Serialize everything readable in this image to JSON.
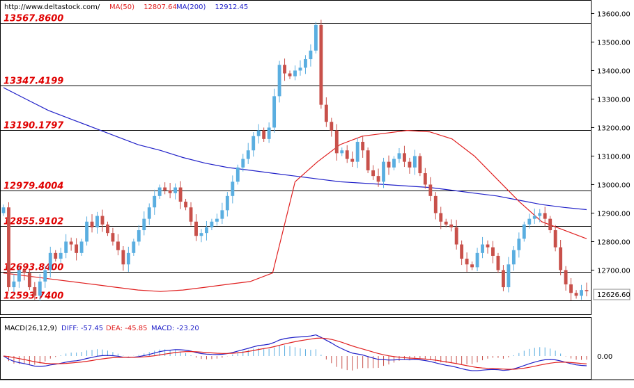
{
  "header": {
    "url": "http://www.deltastock.com/",
    "ma50_label": "MA(50)",
    "ma50_value": "12807.64",
    "ma200_label": "MA(200)",
    "ma200_value": "12912.45"
  },
  "colors": {
    "up": "#5aaee0",
    "down": "#c8504a",
    "ma50": "#e02020",
    "ma200": "#2020c8",
    "level_text": "#e00000",
    "macd_diff": "#2020c8",
    "macd_dea": "#e02020"
  },
  "chart_data": {
    "type": "candlestick",
    "ylim": [
      12545,
      13645
    ],
    "y_ticks": [
      "13600.00",
      "13500.00",
      "13400.00",
      "13300.00",
      "13200.00",
      "13100.00",
      "13000.00",
      "12900.00",
      "12800.00",
      "12700.00"
    ],
    "current_price": "12626.60",
    "levels": [
      {
        "value": 13567.86,
        "label": "13567.8600"
      },
      {
        "value": 13347.4199,
        "label": "13347.4199"
      },
      {
        "value": 13190.1797,
        "label": "13190.1797"
      },
      {
        "value": 12979.4004,
        "label": "12979.4004"
      },
      {
        "value": 12855.9102,
        "label": "12855.9102"
      },
      {
        "value": 12693.84,
        "label": "12693.8400"
      },
      {
        "value": 12593.74,
        "label": "12593.7400"
      }
    ],
    "closes": [
      12920,
      12640,
      12660,
      12700,
      12690,
      12640,
      12610,
      12660,
      12700,
      12760,
      12740,
      12760,
      12800,
      12790,
      12760,
      12800,
      12870,
      12850,
      12890,
      12860,
      12830,
      12800,
      12770,
      12720,
      12760,
      12800,
      12840,
      12880,
      12920,
      12960,
      12990,
      12980,
      12970,
      12990,
      12940,
      12920,
      12870,
      12820,
      12830,
      12850,
      12870,
      12880,
      12910,
      12960,
      13010,
      13060,
      13090,
      13120,
      13170,
      13190,
      13160,
      13200,
      13310,
      13420,
      13390,
      13380,
      13400,
      13410,
      13440,
      13470,
      13560,
      13280,
      13220,
      13190,
      13110,
      13120,
      13090,
      13080,
      13150,
      13120,
      13050,
      13030,
      13010,
      13080,
      13060,
      13090,
      13110,
      13080,
      13060,
      13100,
      13040,
      13000,
      12960,
      12900,
      12870,
      12860,
      12850,
      12790,
      12740,
      12720,
      12710,
      12760,
      12790,
      12780,
      12750,
      12700,
      12640,
      12720,
      12770,
      12810,
      12860,
      12880,
      12890,
      12900,
      12880,
      12840,
      12780,
      12700,
      12650,
      12620,
      12610,
      12630,
      12626
    ],
    "ma50": [
      12690,
      12680,
      12670,
      12660,
      12650,
      12640,
      12630,
      12625,
      12630,
      12640,
      12650,
      12660,
      12690,
      13010,
      13080,
      13140,
      13170,
      13180,
      13190,
      13185,
      13160,
      13100,
      13020,
      12940,
      12870,
      12840,
      12810
    ],
    "ma200": [
      13340,
      13300,
      13260,
      13230,
      13200,
      13170,
      13140,
      13120,
      13095,
      13075,
      13060,
      13050,
      13040,
      13030,
      13020,
      13010,
      13005,
      13000,
      12995,
      12990,
      12980,
      12970,
      12960,
      12945,
      12930,
      12920,
      12912
    ],
    "macd": {
      "label": "MACD(26,12,9)",
      "diff_label": "DIFF:",
      "diff_value": "-57.45",
      "dea_label": "DEA:",
      "dea_value": "-45.85",
      "macd_label": "MACD:",
      "macd_value": "-23.20",
      "zero_tick": "0.00"
    }
  }
}
